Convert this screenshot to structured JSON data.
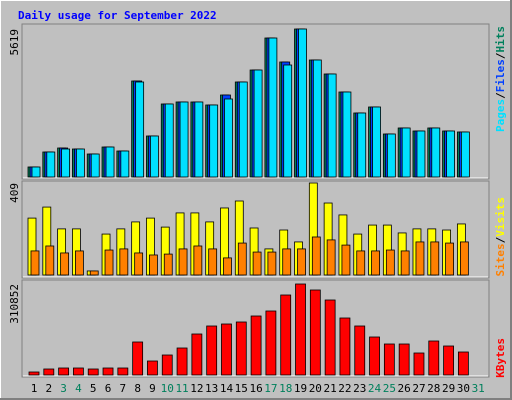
{
  "chart_data": {
    "type": "bar",
    "title": "Daily usage for September 2022",
    "categories": [
      "1",
      "2",
      "3",
      "4",
      "5",
      "6",
      "7",
      "8",
      "9",
      "10",
      "11",
      "12",
      "13",
      "14",
      "15",
      "16",
      "17",
      "18",
      "19",
      "20",
      "21",
      "22",
      "23",
      "24",
      "25",
      "26",
      "27",
      "28",
      "29",
      "30",
      "31"
    ],
    "category_colors": [
      "#000000",
      "#000000",
      "#00805c",
      "#00805c",
      "#000000",
      "#000000",
      "#000000",
      "#000000",
      "#000000",
      "#00805c",
      "#00805c",
      "#000000",
      "#000000",
      "#000000",
      "#000000",
      "#000000",
      "#00805c",
      "#00805c",
      "#000000",
      "#000000",
      "#000000",
      "#000000",
      "#000000",
      "#00805c",
      "#00805c",
      "#000000",
      "#000000",
      "#000000",
      "#000000",
      "#000000",
      "#00805c"
    ],
    "legend_separator": "/",
    "panels": [
      {
        "ylim": [
          0,
          5619
        ],
        "yticks": [
          5619
        ],
        "series": [
          {
            "name": "Hits",
            "color": "#00805c",
            "values": [
              380,
              949,
              1101,
              1063,
              873,
              1139,
              987,
              3645,
              1557,
              2772,
              2848,
              2848,
              2734,
              3113,
              3607,
              4062,
              5277,
              4366,
              5619,
              4442,
              3911,
              3227,
              2430,
              2658,
              1633,
              1861,
              1747,
              1861,
              1747,
              1709,
              null
            ]
          },
          {
            "name": "Files",
            "color": "#0040ff",
            "values": [
              380,
              949,
              1101,
              1063,
              873,
              1139,
              987,
              3645,
              1557,
              2772,
              2848,
              2848,
              2734,
              3113,
              3607,
              4062,
              5277,
              4366,
              5619,
              4442,
              3911,
              3227,
              2430,
              2658,
              1633,
              1861,
              1747,
              1861,
              1747,
              1709,
              null
            ]
          },
          {
            "name": "Pages",
            "color": "#00e0ff",
            "values": [
              380,
              949,
              1063,
              1063,
              873,
              1139,
              987,
              3607,
              1557,
              2772,
              2848,
              2848,
              2734,
              2962,
              3607,
              4062,
              5277,
              4252,
              5619,
              4442,
              3911,
              3227,
              2430,
              2658,
              1633,
              1861,
              1747,
              1861,
              1747,
              1709,
              null
            ]
          }
        ]
      },
      {
        "ylim": [
          0,
          409
        ],
        "yticks": [
          409
        ],
        "series": [
          {
            "name": "Visits",
            "color": "#ffff00",
            "values": [
              253,
              302,
              205,
              205,
              18,
              182,
              205,
              236,
              253,
              213,
              276,
              276,
              236,
              298,
              329,
              209,
              116,
              200,
              147,
              409,
              320,
              267,
              182,
              222,
              222,
              187,
              205,
              205,
              200,
              227,
              null
            ]
          },
          {
            "name": "Sites",
            "color": "#ff8000",
            "values": [
              107,
              129,
              98,
              107,
              18,
              111,
              116,
              98,
              89,
              93,
              116,
              129,
              116,
              76,
              142,
              102,
              102,
              116,
              116,
              169,
              156,
              133,
              107,
              107,
              111,
              107,
              147,
              147,
              142,
              147,
              null
            ]
          }
        ]
      },
      {
        "ylim": [
          0,
          310852
        ],
        "yticks": [
          310852
        ],
        "series": [
          {
            "name": "KBytes",
            "color": "#ff0000",
            "values": [
              10248,
              20496,
              23912,
              23912,
              20496,
              23912,
              23912,
              112728,
              47824,
              68320,
              92232,
              140056,
              167384,
              174216,
              181048,
              201544,
              218624,
              273280,
              310852,
              290360,
              256200,
              194712,
              167384,
              129808,
              105896,
              105896,
              75152,
              116144,
              99064,
              78568,
              null
            ]
          }
        ]
      }
    ]
  }
}
